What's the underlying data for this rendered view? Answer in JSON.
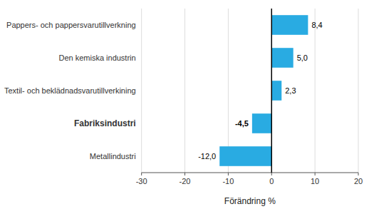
{
  "chart_data": {
    "type": "bar",
    "orientation": "horizontal",
    "categories": [
      "Metallindustri",
      "Fabriksindustri",
      "Textil- och beklädnadsvarutillverkining",
      "Den kemiska industrin",
      "Pappers- och pappersvarutillverkning"
    ],
    "values": [
      -12.0,
      -4.5,
      2.3,
      5.0,
      8.4
    ],
    "value_labels": [
      "-12,0",
      "-4,5",
      "2,3",
      "5,0",
      "8,4"
    ],
    "data_labels": true,
    "color": "#29abe2",
    "xlabel": "Förändring %",
    "xlim": [
      -30,
      20
    ],
    "xticks": [
      -30,
      -20,
      -10,
      0,
      10,
      20
    ],
    "grid": true
  }
}
